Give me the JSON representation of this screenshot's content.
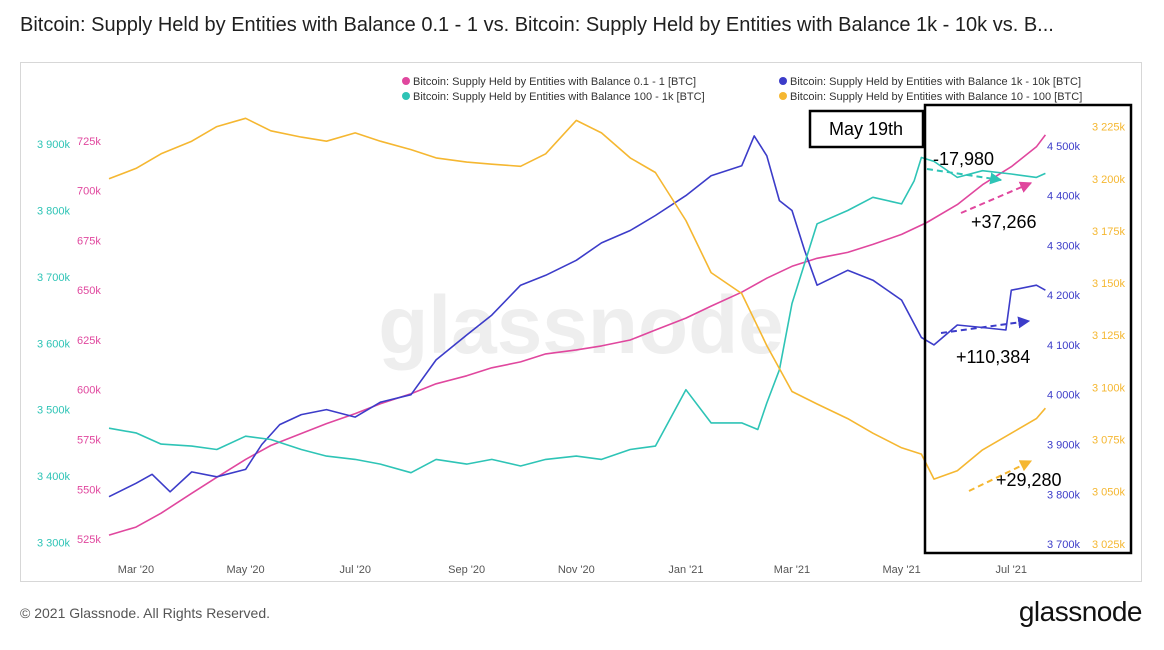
{
  "title": "Bitcoin: Supply Held by Entities with Balance 0.1 - 1 vs. Bitcoin: Supply Held by Entities with Balance 1k - 10k vs. B...",
  "footer": {
    "copyright": "© 2021 Glassnode. All Rights Reserved.",
    "logo": "glassnode"
  },
  "watermark": "glassnode",
  "chart_data": {
    "type": "line",
    "title": "Bitcoin: Supply Held by Entities with Balance 0.1 - 1 vs. Bitcoin: Supply Held by Entities with Balance 1k - 10k vs. B...",
    "x_ticks": [
      "Mar '20",
      "May '20",
      "Jul '20",
      "Sep '20",
      "Nov '20",
      "Jan '21",
      "Mar '21",
      "May '21",
      "Jul '21"
    ],
    "x_tick_dates": [
      "2020-03-01",
      "2020-05-01",
      "2020-07-01",
      "2020-09-01",
      "2020-11-01",
      "2021-01-01",
      "2021-03-01",
      "2021-05-01",
      "2021-07-01"
    ],
    "x_range": [
      "2020-02-15",
      "2021-07-22"
    ],
    "grid": false,
    "legend_position": "top-right",
    "axes": {
      "axis_0_1": {
        "ylim": [
          520000,
          740000
        ],
        "ticks": [
          "525k",
          "550k",
          "575k",
          "600k",
          "625k",
          "650k",
          "675k",
          "700k",
          "725k"
        ],
        "tick_values": [
          525000,
          550000,
          575000,
          600000,
          625000,
          650000,
          675000,
          700000,
          725000
        ],
        "side": "left",
        "color": "#e0479e"
      },
      "axis_100_1k": {
        "ylim": [
          3290000,
          3950000
        ],
        "ticks": [
          "3 300k",
          "3 400k",
          "3 500k",
          "3 600k",
          "3 700k",
          "3 800k",
          "3 900k"
        ],
        "tick_values": [
          3300000,
          3400000,
          3500000,
          3600000,
          3700000,
          3800000,
          3900000
        ],
        "side": "left",
        "color": "#2ec4b6"
      },
      "axis_1k_10k": {
        "ylim": [
          3690000,
          4570000
        ],
        "ticks": [
          "3 700k",
          "3 800k",
          "3 900k",
          "4 000k",
          "4 100k",
          "4 200k",
          "4 300k",
          "4 400k",
          "4 500k"
        ],
        "tick_values": [
          3700000,
          3800000,
          3900000,
          4000000,
          4100000,
          4200000,
          4300000,
          4400000,
          4500000
        ],
        "side": "right",
        "color": "#3c3cc9"
      },
      "axis_10_100": {
        "ylim": [
          3022500,
          3232500
        ],
        "ticks": [
          "3 025k",
          "3 050k",
          "3 075k",
          "3 100k",
          "3 125k",
          "3 150k",
          "3 175k",
          "3 200k",
          "3 225k"
        ],
        "tick_values": [
          3025000,
          3050000,
          3075000,
          3100000,
          3125000,
          3150000,
          3175000,
          3200000,
          3225000
        ],
        "side": "right",
        "color": "#f5b731"
      }
    },
    "series": [
      {
        "name": "Bitcoin: Supply Held by Entities with Balance 0.1 - 1 [BTC]",
        "axis": "axis_0_1",
        "color": "#e0479e",
        "points": [
          [
            "2020-02-15",
            527000
          ],
          [
            "2020-03-01",
            531000
          ],
          [
            "2020-03-15",
            538000
          ],
          [
            "2020-04-01",
            548000
          ],
          [
            "2020-04-15",
            556000
          ],
          [
            "2020-05-01",
            565000
          ],
          [
            "2020-05-15",
            572000
          ],
          [
            "2020-06-01",
            578000
          ],
          [
            "2020-06-15",
            583000
          ],
          [
            "2020-07-01",
            588000
          ],
          [
            "2020-07-15",
            593000
          ],
          [
            "2020-08-01",
            598000
          ],
          [
            "2020-08-15",
            603000
          ],
          [
            "2020-09-01",
            607000
          ],
          [
            "2020-09-15",
            611000
          ],
          [
            "2020-10-01",
            614000
          ],
          [
            "2020-10-15",
            618000
          ],
          [
            "2020-11-01",
            620000
          ],
          [
            "2020-11-15",
            622000
          ],
          [
            "2020-12-01",
            625000
          ],
          [
            "2020-12-15",
            630000
          ],
          [
            "2021-01-01",
            636000
          ],
          [
            "2021-01-15",
            642000
          ],
          [
            "2021-02-01",
            649000
          ],
          [
            "2021-02-15",
            656000
          ],
          [
            "2021-03-01",
            662000
          ],
          [
            "2021-03-15",
            666000
          ],
          [
            "2021-04-01",
            669000
          ],
          [
            "2021-04-15",
            673000
          ],
          [
            "2021-05-01",
            678000
          ],
          [
            "2021-05-15",
            684000
          ],
          [
            "2021-06-01",
            693000
          ],
          [
            "2021-06-15",
            703000
          ],
          [
            "2021-07-01",
            712000
          ],
          [
            "2021-07-15",
            722000
          ],
          [
            "2021-07-20",
            728000
          ]
        ]
      },
      {
        "name": "Bitcoin: Supply Held by Entities with Balance 1k - 10k [BTC]",
        "axis": "axis_1k_10k",
        "color": "#3c3cc9",
        "points": [
          [
            "2020-02-15",
            3795000
          ],
          [
            "2020-03-01",
            3822000
          ],
          [
            "2020-03-10",
            3840000
          ],
          [
            "2020-03-20",
            3805000
          ],
          [
            "2020-04-01",
            3845000
          ],
          [
            "2020-04-15",
            3835000
          ],
          [
            "2020-05-01",
            3850000
          ],
          [
            "2020-05-10",
            3900000
          ],
          [
            "2020-05-20",
            3940000
          ],
          [
            "2020-06-01",
            3960000
          ],
          [
            "2020-06-15",
            3970000
          ],
          [
            "2020-07-01",
            3955000
          ],
          [
            "2020-07-15",
            3985000
          ],
          [
            "2020-08-01",
            4000000
          ],
          [
            "2020-08-15",
            4070000
          ],
          [
            "2020-09-01",
            4120000
          ],
          [
            "2020-09-15",
            4160000
          ],
          [
            "2020-10-01",
            4220000
          ],
          [
            "2020-10-15",
            4240000
          ],
          [
            "2020-11-01",
            4270000
          ],
          [
            "2020-11-15",
            4305000
          ],
          [
            "2020-12-01",
            4330000
          ],
          [
            "2020-12-15",
            4360000
          ],
          [
            "2021-01-01",
            4400000
          ],
          [
            "2021-01-15",
            4440000
          ],
          [
            "2021-02-01",
            4460000
          ],
          [
            "2021-02-08",
            4520000
          ],
          [
            "2021-02-15",
            4480000
          ],
          [
            "2021-02-22",
            4390000
          ],
          [
            "2021-03-01",
            4370000
          ],
          [
            "2021-03-08",
            4290000
          ],
          [
            "2021-03-15",
            4220000
          ],
          [
            "2021-04-01",
            4250000
          ],
          [
            "2021-04-15",
            4230000
          ],
          [
            "2021-05-01",
            4190000
          ],
          [
            "2021-05-12",
            4115000
          ],
          [
            "2021-05-19",
            4100000
          ],
          [
            "2021-06-01",
            4140000
          ],
          [
            "2021-06-15",
            4135000
          ],
          [
            "2021-06-28",
            4130000
          ],
          [
            "2021-07-01",
            4210000
          ],
          [
            "2021-07-15",
            4220000
          ],
          [
            "2021-07-20",
            4210000
          ]
        ]
      },
      {
        "name": "Bitcoin: Supply Held by Entities with Balance 100 - 1k [BTC]",
        "axis": "axis_100_1k",
        "color": "#2ec4b6",
        "points": [
          [
            "2020-02-15",
            3472000
          ],
          [
            "2020-03-01",
            3465000
          ],
          [
            "2020-03-15",
            3448000
          ],
          [
            "2020-04-01",
            3445000
          ],
          [
            "2020-04-15",
            3440000
          ],
          [
            "2020-05-01",
            3460000
          ],
          [
            "2020-05-15",
            3455000
          ],
          [
            "2020-06-01",
            3440000
          ],
          [
            "2020-06-15",
            3430000
          ],
          [
            "2020-07-01",
            3425000
          ],
          [
            "2020-07-15",
            3418000
          ],
          [
            "2020-08-01",
            3405000
          ],
          [
            "2020-08-15",
            3425000
          ],
          [
            "2020-09-01",
            3418000
          ],
          [
            "2020-09-15",
            3425000
          ],
          [
            "2020-10-01",
            3415000
          ],
          [
            "2020-10-15",
            3425000
          ],
          [
            "2020-11-01",
            3430000
          ],
          [
            "2020-11-15",
            3425000
          ],
          [
            "2020-12-01",
            3440000
          ],
          [
            "2020-12-15",
            3445000
          ],
          [
            "2021-01-01",
            3530000
          ],
          [
            "2021-01-15",
            3480000
          ],
          [
            "2021-02-01",
            3480000
          ],
          [
            "2021-02-10",
            3470000
          ],
          [
            "2021-02-15",
            3510000
          ],
          [
            "2021-02-22",
            3560000
          ],
          [
            "2021-03-01",
            3660000
          ],
          [
            "2021-03-15",
            3780000
          ],
          [
            "2021-04-01",
            3800000
          ],
          [
            "2021-04-15",
            3820000
          ],
          [
            "2021-05-01",
            3810000
          ],
          [
            "2021-05-08",
            3845000
          ],
          [
            "2021-05-12",
            3880000
          ],
          [
            "2021-05-19",
            3874000
          ],
          [
            "2021-06-01",
            3850000
          ],
          [
            "2021-06-15",
            3860000
          ],
          [
            "2021-07-01",
            3855000
          ],
          [
            "2021-07-15",
            3850000
          ],
          [
            "2021-07-20",
            3856000
          ]
        ]
      },
      {
        "name": "Bitcoin: Supply Held by Entities with Balance 10 - 100 [BTC]",
        "axis": "axis_10_100",
        "color": "#f5b731",
        "points": [
          [
            "2020-02-15",
            3200000
          ],
          [
            "2020-03-01",
            3205000
          ],
          [
            "2020-03-15",
            3212000
          ],
          [
            "2020-04-01",
            3218000
          ],
          [
            "2020-04-15",
            3225000
          ],
          [
            "2020-05-01",
            3229000
          ],
          [
            "2020-05-15",
            3223000
          ],
          [
            "2020-06-01",
            3220000
          ],
          [
            "2020-06-15",
            3218000
          ],
          [
            "2020-07-01",
            3222000
          ],
          [
            "2020-07-15",
            3218000
          ],
          [
            "2020-08-01",
            3214000
          ],
          [
            "2020-08-15",
            3210000
          ],
          [
            "2020-09-01",
            3208000
          ],
          [
            "2020-09-15",
            3207000
          ],
          [
            "2020-10-01",
            3206000
          ],
          [
            "2020-10-15",
            3212000
          ],
          [
            "2020-11-01",
            3228000
          ],
          [
            "2020-11-15",
            3222000
          ],
          [
            "2020-12-01",
            3210000
          ],
          [
            "2020-12-15",
            3203000
          ],
          [
            "2021-01-01",
            3180000
          ],
          [
            "2021-01-15",
            3155000
          ],
          [
            "2021-02-01",
            3145000
          ],
          [
            "2021-02-15",
            3120000
          ],
          [
            "2021-03-01",
            3098000
          ],
          [
            "2021-03-15",
            3092000
          ],
          [
            "2021-04-01",
            3085000
          ],
          [
            "2021-04-15",
            3078000
          ],
          [
            "2021-05-01",
            3071000
          ],
          [
            "2021-05-12",
            3068000
          ],
          [
            "2021-05-19",
            3056000
          ],
          [
            "2021-06-01",
            3060000
          ],
          [
            "2021-06-15",
            3070000
          ],
          [
            "2021-07-01",
            3078000
          ],
          [
            "2021-07-15",
            3085000
          ],
          [
            "2021-07-20",
            3090000
          ]
        ]
      }
    ],
    "annotations": {
      "date_label": "May 19th",
      "changes": [
        {
          "label": "-17,980",
          "series": "Bitcoin: Supply Held by Entities with Balance 100 - 1k [BTC]",
          "color": "#2ec4b6"
        },
        {
          "label": "+37,266",
          "series": "Bitcoin: Supply Held by Entities with Balance 0.1 - 1 [BTC]",
          "color": "#e0479e"
        },
        {
          "label": "+110,384",
          "series": "Bitcoin: Supply Held by Entities with Balance 1k - 10k [BTC]",
          "color": "#3c3cc9"
        },
        {
          "label": "+29,280",
          "series": "Bitcoin: Supply Held by Entities with Balance 10 - 100 [BTC]",
          "color": "#f5b731"
        }
      ]
    }
  }
}
